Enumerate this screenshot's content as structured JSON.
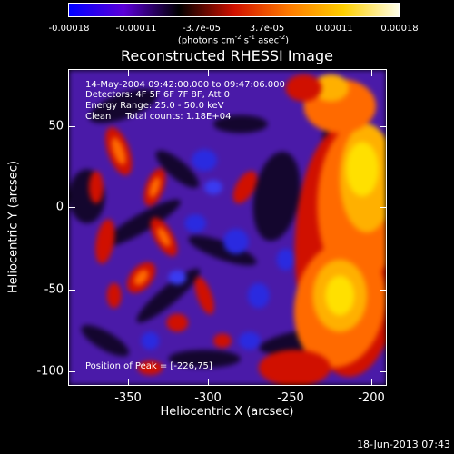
{
  "colorbar": {
    "tick_labels": [
      "-0.00018",
      "-0.00011",
      "-3.7e-05",
      "3.7e-05",
      "0.00011",
      "0.00018"
    ],
    "units_text": "(photons cm",
    "units_exp1": "-2",
    "units_mid": " s",
    "units_exp2": "-1",
    "units_mid2": " asec",
    "units_exp3": "-2",
    "units_end": ")",
    "colors": [
      "#0000ff",
      "#5b00d8",
      "#000000",
      "#d01000",
      "#ff7a00",
      "#ffd000",
      "#ffffe8"
    ]
  },
  "title": "Reconstructed RHESSI Image",
  "info": {
    "time_range": "14-May-2004 09:42:00.000 to 09:47:06.000",
    "detectors": "Detectors: 4F 5F 6F 7F 8F, Att 0",
    "energy": "Energy Range: 25.0 - 50.0 keV",
    "clean": "Clean     Total counts: 1.18E+04",
    "peak": "Position of Peak = [-226,75]"
  },
  "axes": {
    "xlabel": "Heliocentric X (arcsec)",
    "ylabel": "Heliocentric Y (arcsec)",
    "xticks": [
      "-350",
      "-300",
      "-250",
      "-200"
    ],
    "yticks": [
      "50",
      "0",
      "-50",
      "-100"
    ]
  },
  "timestamp": "18-Jun-2013 07:43"
}
